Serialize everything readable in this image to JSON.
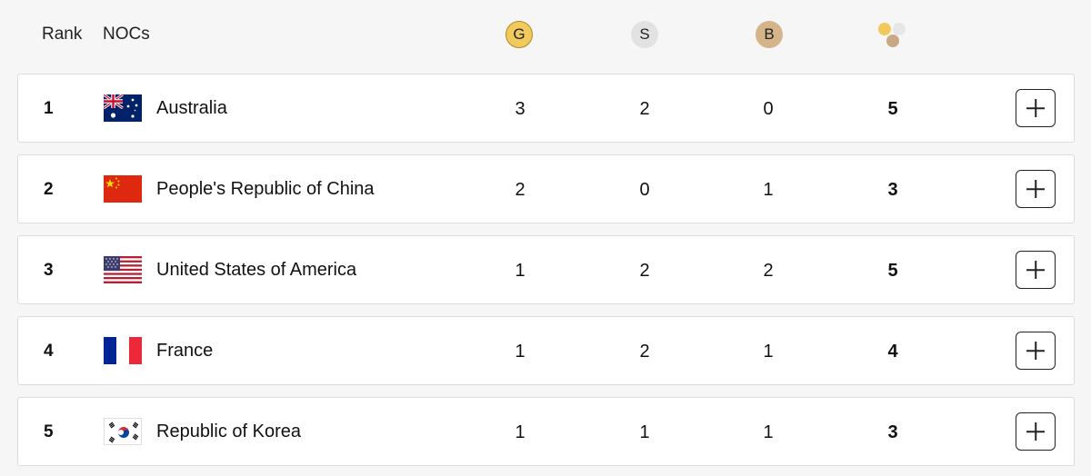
{
  "header": {
    "rank_label": "Rank",
    "noc_label": "NOCs",
    "gold_label": "G",
    "silver_label": "S",
    "bronze_label": "B",
    "total_icon": "medals-total-icon"
  },
  "colors": {
    "gold": "#f2c95c",
    "silver": "#e2e2e2",
    "bronze": "#d6b48a"
  },
  "rows": [
    {
      "rank": "1",
      "noc": "Australia",
      "gold": "3",
      "silver": "2",
      "bronze": "0",
      "total": "5",
      "flag_icon": "australia-flag-icon"
    },
    {
      "rank": "2",
      "noc": "People's Republic of China",
      "gold": "2",
      "silver": "0",
      "bronze": "1",
      "total": "3",
      "flag_icon": "china-flag-icon"
    },
    {
      "rank": "3",
      "noc": "United States of America",
      "gold": "1",
      "silver": "2",
      "bronze": "2",
      "total": "5",
      "flag_icon": "usa-flag-icon"
    },
    {
      "rank": "4",
      "noc": "France",
      "gold": "1",
      "silver": "2",
      "bronze": "1",
      "total": "4",
      "flag_icon": "france-flag-icon"
    },
    {
      "rank": "5",
      "noc": "Republic of Korea",
      "gold": "1",
      "silver": "1",
      "bronze": "1",
      "total": "3",
      "flag_icon": "korea-flag-icon"
    }
  ]
}
